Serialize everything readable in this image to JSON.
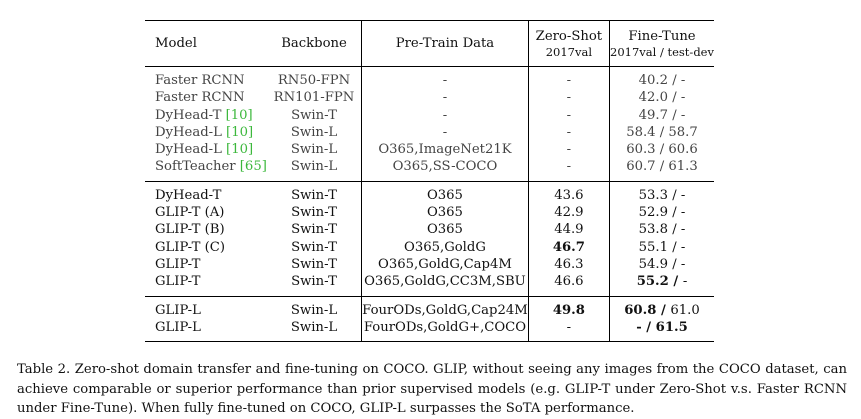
{
  "header": {
    "model": "Model",
    "backbone": "Backbone",
    "pretrain": "Pre-Train Data",
    "zeroshot": "Zero-Shot",
    "zeroshot_sub": "2017val",
    "finetune": "Fine-Tune",
    "finetune_sub": "2017val / test-dev"
  },
  "groups": [
    {
      "style": "gray",
      "rows": [
        {
          "model": "Faster RCNN",
          "cite": "",
          "backbone": "RN50-FPN",
          "pretrain": "-",
          "zeroshot": "-",
          "ft_a": "40.2",
          "ft_b": "-"
        },
        {
          "model": "Faster RCNN",
          "cite": "",
          "backbone": "RN101-FPN",
          "pretrain": "-",
          "zeroshot": "-",
          "ft_a": "42.0",
          "ft_b": "-"
        },
        {
          "model": "DyHead-T ",
          "cite": "[10]",
          "backbone": "Swin-T",
          "pretrain": "-",
          "zeroshot": "-",
          "ft_a": "49.7",
          "ft_b": "-"
        },
        {
          "model": "DyHead-L ",
          "cite": "[10]",
          "backbone": "Swin-L",
          "pretrain": "-",
          "zeroshot": "-",
          "ft_a": "58.4",
          "ft_b": "58.7"
        },
        {
          "model": "DyHead-L ",
          "cite": "[10]",
          "backbone": "Swin-L",
          "pretrain": "O365,ImageNet21K",
          "zeroshot": "-",
          "ft_a": "60.3",
          "ft_b": "60.6"
        },
        {
          "model": "SoftTeacher ",
          "cite": "[65]",
          "backbone": "Swin-L",
          "pretrain": "O365,SS-COCO",
          "zeroshot": "-",
          "ft_a": "60.7",
          "ft_b": "61.3"
        }
      ]
    },
    {
      "style": "normal",
      "rows": [
        {
          "model": "DyHead-T",
          "cite": "",
          "backbone": "Swin-T",
          "pretrain": "O365",
          "zeroshot": "43.6",
          "ft_a": "53.3",
          "ft_b": "-"
        },
        {
          "model": "GLIP-T (A)",
          "cite": "",
          "backbone": "Swin-T",
          "pretrain": "O365",
          "zeroshot": "42.9",
          "ft_a": "52.9",
          "ft_b": "-"
        },
        {
          "model": "GLIP-T (B)",
          "cite": "",
          "backbone": "Swin-T",
          "pretrain": "O365",
          "zeroshot": "44.9",
          "ft_a": "53.8",
          "ft_b": "-"
        },
        {
          "model": "GLIP-T (C)",
          "cite": "",
          "backbone": "Swin-T",
          "pretrain": "O365,GoldG",
          "zeroshot": "46.7",
          "zs_bold": true,
          "ft_a": "55.1",
          "ft_b": "-"
        },
        {
          "model": "GLIP-T",
          "cite": "",
          "backbone": "Swin-T",
          "pretrain": "O365,GoldG,Cap4M",
          "zeroshot": "46.3",
          "ft_a": "54.9",
          "ft_b": "-"
        },
        {
          "model": "GLIP-T",
          "cite": "",
          "backbone": "Swin-T",
          "pretrain": "O365,GoldG,CC3M,SBU",
          "zeroshot": "46.6",
          "ft_a": "55.2",
          "fta_bold": true,
          "ft_b": "-"
        }
      ]
    },
    {
      "style": "normal",
      "rows": [
        {
          "model": "GLIP-L",
          "cite": "",
          "backbone": "Swin-L",
          "pretrain": "FourODs,GoldG,Cap24M",
          "zeroshot": "49.8",
          "zs_bold": true,
          "ft_a": "60.8",
          "fta_bold": true,
          "ft_b": "61.0"
        },
        {
          "model": "GLIP-L",
          "cite": "",
          "backbone": "Swin-L",
          "pretrain": "FourODs,GoldG+,COCO",
          "zeroshot": "-",
          "ft_a": "-",
          "fta_bold": true,
          "ft_b": "61.5",
          "ftb_bold": true
        }
      ]
    }
  ],
  "caption": "Table 2. Zero-shot domain transfer and fine-tuning on COCO. GLIP, without seeing any images from the COCO dataset, can achieve comparable or superior performance than prior supervised models (e.g. GLIP-T under Zero-Shot v.s. Faster RCNN under Fine-Tune). When fully fine-tuned on COCO, GLIP-L surpasses the SoTA performance."
}
